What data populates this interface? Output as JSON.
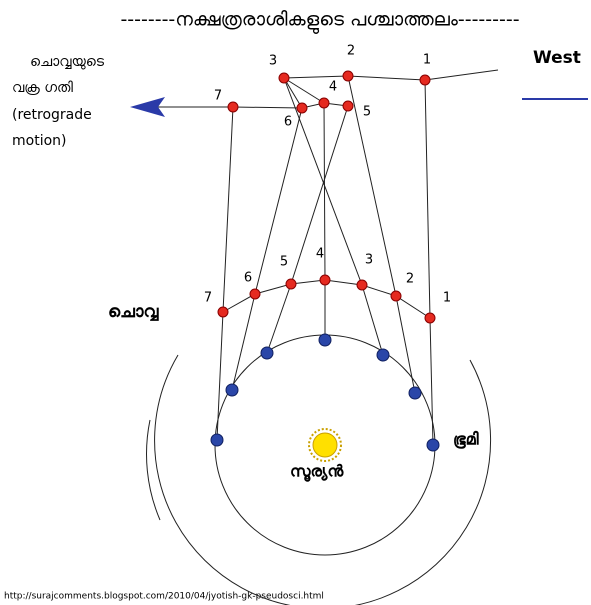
{
  "title": "--------നക്ഷത്രരാശികളുടെ പശ്ചാത്തലം---------",
  "west_label": "West",
  "retrograde_label": {
    "lines": [
      "ചൊവ്വയുടെ",
      "വക്ര ഗതി",
      "(retrograde",
      "motion)"
    ]
  },
  "mars_label": "ചൊവ്വ",
  "sun_label": "സൂര്യൻ",
  "earth_label": "ഭൂമി",
  "source_url": "http://surajcomments.blogspot.com/2010/04/jyotish-gk-pseudosci.html",
  "background_points": [
    {
      "label": "1"
    },
    {
      "label": "2"
    },
    {
      "label": "3"
    },
    {
      "label": "4"
    },
    {
      "label": "5"
    },
    {
      "label": "6"
    },
    {
      "label": "7"
    }
  ],
  "mars_points": [
    {
      "label": "1"
    },
    {
      "label": "2"
    },
    {
      "label": "3"
    },
    {
      "label": "4"
    },
    {
      "label": "5"
    },
    {
      "label": "6"
    },
    {
      "label": "7"
    }
  ]
}
